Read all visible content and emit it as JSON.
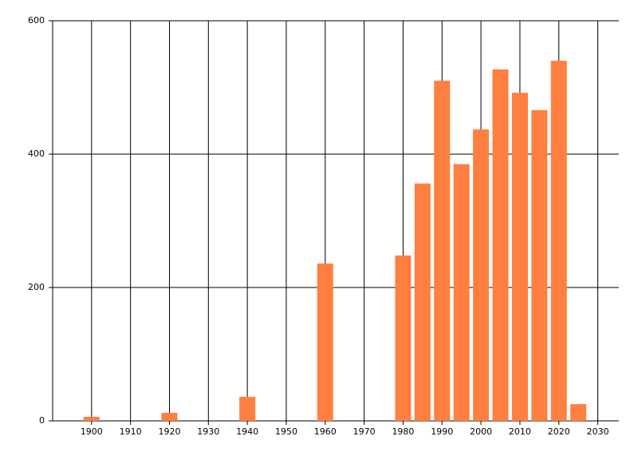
{
  "chart_data": {
    "type": "bar",
    "x": [
      1900,
      1920,
      1940,
      1960,
      1980,
      1985,
      1990,
      1995,
      2000,
      2005,
      2010,
      2015,
      2020,
      2025
    ],
    "values": [
      6,
      12,
      36,
      236,
      248,
      356,
      510,
      385,
      437,
      527,
      492,
      466,
      540,
      25
    ],
    "color": "#ff7f40",
    "xlim": [
      1890,
      2035
    ],
    "xticks": [
      1900,
      1910,
      1920,
      1930,
      1940,
      1950,
      1960,
      1970,
      1980,
      1990,
      2000,
      2010,
      2020,
      2030
    ],
    "ylim": [
      0,
      600
    ],
    "yticks": [
      0,
      200,
      400,
      600
    ],
    "grid": true
  }
}
